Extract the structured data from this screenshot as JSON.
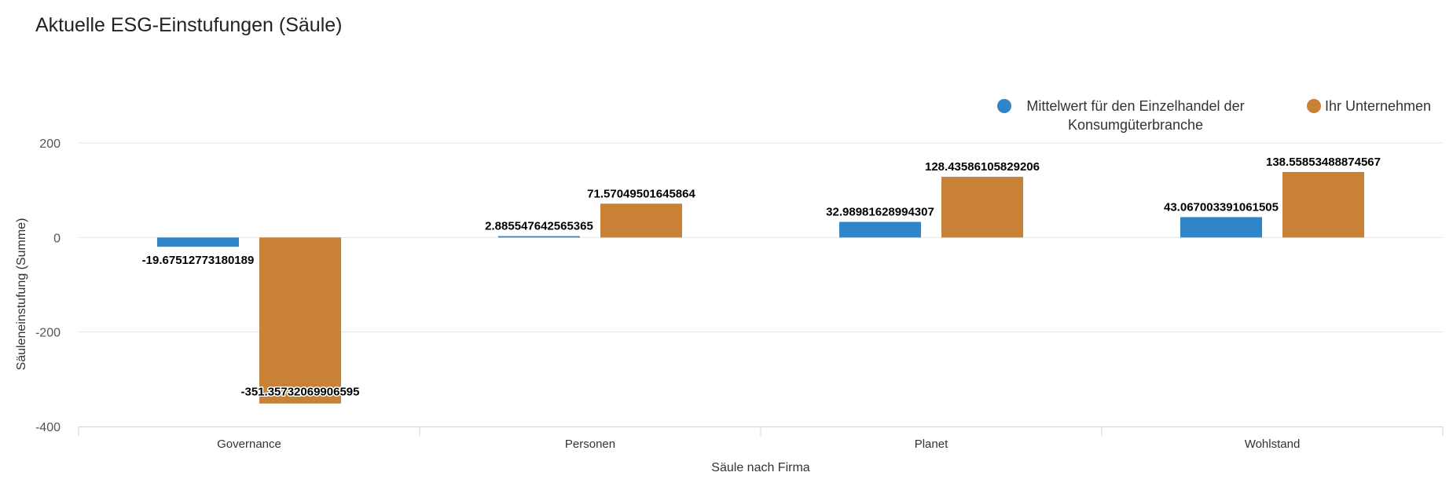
{
  "chart_data": {
    "type": "bar",
    "title": "Aktuelle ESG-Einstufungen (Säule)",
    "xlabel": "Säule nach Firma",
    "ylabel": "Säuleneinstufung (Summe)",
    "categories": [
      "Governance",
      "Personen",
      "Planet",
      "Wohlstand"
    ],
    "ylim": [
      -400,
      200
    ],
    "yticks": [
      200,
      0,
      -200,
      -400
    ],
    "ytick_labels": [
      "200",
      "0",
      "-200",
      "-400"
    ],
    "grid": true,
    "legend_position": "top-right",
    "series": [
      {
        "name": "Mittelwert für den Einzelhandel der Konsumgüterbranche",
        "legend_lines": [
          "Mittelwert für den Einzelhandel der",
          "Konsumgüterbranche"
        ],
        "color": "#2e86c9",
        "values": [
          -19.67512773180189,
          2.885547642565365,
          32.98981628994307,
          43.067003391061505
        ],
        "value_labels": [
          "-19.67512773180189",
          "2.885547642565365",
          "32.98981628994307",
          "43.067003391061505"
        ]
      },
      {
        "name": "Ihr Unternehmen",
        "legend_lines": [
          "Ihr Unternehmen"
        ],
        "color": "#c98235",
        "values": [
          -351.35732069906595,
          71.57049501645864,
          128.43586105829206,
          138.55853488874567
        ],
        "value_labels": [
          "-351.35732069906595",
          "71.57049501645864",
          "128.43586105829206",
          "138.55853488874567"
        ]
      }
    ]
  }
}
